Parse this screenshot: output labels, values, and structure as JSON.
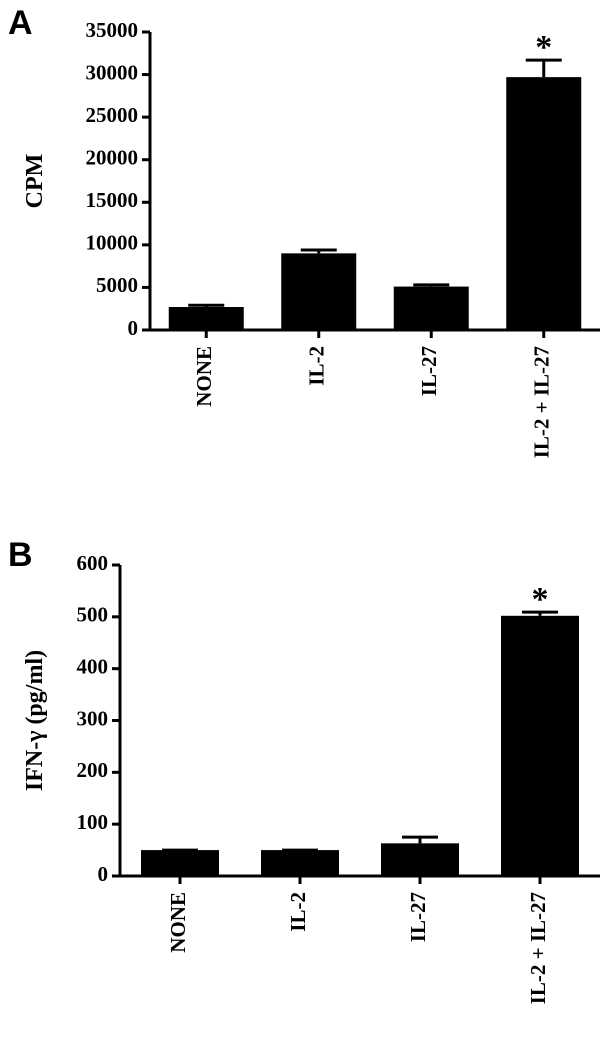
{
  "chart_data": [
    {
      "type": "bar",
      "label": "A",
      "ylabel": "CPM",
      "categories": [
        "NONE",
        "IL-2",
        "IL-27",
        "IL-2 + IL-27"
      ],
      "values": [
        2700,
        9000,
        5100,
        29700
      ],
      "errors": [
        200,
        400,
        200,
        2000
      ],
      "color": "#000000",
      "annotation": "*",
      "ylim": [
        0,
        35000
      ],
      "yticks": [
        0,
        5000,
        10000,
        15000,
        20000,
        25000,
        30000,
        35000
      ]
    },
    {
      "type": "bar",
      "label": "B",
      "ylabel": "IFN-γ (pg/ml)",
      "categories": [
        "NONE",
        "IL-2",
        "IL-27",
        "IL-2 + IL-27"
      ],
      "values": [
        50,
        50,
        63,
        502
      ],
      "errors": [
        0,
        0,
        12,
        7
      ],
      "color": "#000000",
      "annotation": "*",
      "ylim": [
        0,
        600
      ],
      "yticks": [
        0,
        100,
        200,
        300,
        400,
        500,
        600
      ]
    }
  ]
}
